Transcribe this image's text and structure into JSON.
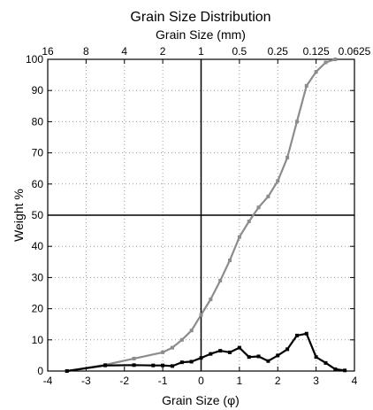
{
  "chart_data": {
    "type": "line",
    "title": "Grain Size Distribution",
    "top_axis_label": "Grain Size (mm)",
    "xlabel": "Grain Size (φ)",
    "ylabel": "Weight %",
    "xlim": [
      -4,
      4
    ],
    "ylim": [
      0,
      100
    ],
    "grid": "dotted",
    "x_ticks": [
      -4,
      -3,
      -2,
      -1,
      0,
      1,
      2,
      3,
      4
    ],
    "x_tick_labels": [
      "-4",
      "-3",
      "-2",
      "-1",
      "0",
      "1",
      "2",
      "3",
      "4"
    ],
    "y_ticks": [
      0,
      10,
      20,
      30,
      40,
      50,
      60,
      70,
      80,
      90,
      100
    ],
    "y_tick_labels": [
      "0",
      "10",
      "20",
      "30",
      "40",
      "50",
      "60",
      "70",
      "80",
      "90",
      "100"
    ],
    "top_ticks_phi": [
      -4,
      -3,
      -2,
      -1,
      0,
      1,
      2,
      3,
      4
    ],
    "top_tick_labels": [
      "16",
      "8",
      "4",
      "2",
      "1",
      "0.5",
      "0.25",
      "0.125",
      "0.0625"
    ],
    "reference_lines": {
      "x": 0,
      "y": 50
    },
    "series": [
      {
        "color": "#8c8c8c",
        "marker": "square",
        "x": [
          -3.5,
          -2.5,
          -1.75,
          -1.0,
          -0.75,
          -0.5,
          -0.25,
          0,
          0.25,
          0.5,
          0.75,
          1.0,
          1.25,
          1.5,
          1.75,
          2.0,
          2.25,
          2.5,
          2.75,
          3.0,
          3.25,
          3.5
        ],
        "y": [
          0,
          2,
          4,
          6,
          7.5,
          10,
          13,
          18,
          23,
          29,
          35.5,
          43,
          48,
          52.5,
          56,
          61,
          68.5,
          80,
          91.5,
          96,
          99,
          100
        ]
      },
      {
        "color": "#000000",
        "marker": "square",
        "x": [
          -3.5,
          -2.5,
          -1.75,
          -1.25,
          -1.0,
          -0.75,
          -0.5,
          -0.25,
          0,
          0.25,
          0.5,
          0.75,
          1.0,
          1.25,
          1.5,
          1.75,
          2.0,
          2.25,
          2.5,
          2.75,
          3.0,
          3.25,
          3.5,
          3.75
        ],
        "y": [
          0,
          1.8,
          1.9,
          1.8,
          1.8,
          1.6,
          2.8,
          3.0,
          4.2,
          5.5,
          6.5,
          6.0,
          7.5,
          4.5,
          4.7,
          3.2,
          5.0,
          7.0,
          11.4,
          12.0,
          4.5,
          2.6,
          0.6,
          0.2
        ]
      }
    ]
  }
}
